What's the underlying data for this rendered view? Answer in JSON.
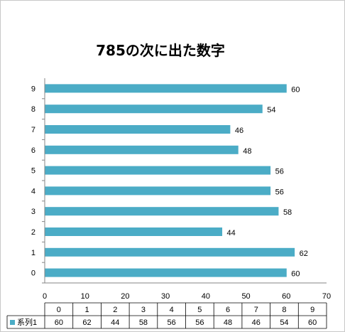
{
  "chart_data": {
    "type": "bar",
    "orientation": "horizontal",
    "title": "785の次に出た数字",
    "categories": [
      "0",
      "1",
      "2",
      "3",
      "4",
      "5",
      "6",
      "7",
      "8",
      "9"
    ],
    "series": [
      {
        "name": "系列1",
        "values": [
          60,
          62,
          44,
          58,
          56,
          56,
          48,
          46,
          54,
          60
        ],
        "color": "#4bacc6"
      }
    ],
    "xlim": [
      0,
      70
    ],
    "xticks": [
      "0",
      "10",
      "20",
      "30",
      "40",
      "50",
      "60",
      "70"
    ],
    "data_labels": true,
    "data_table": true,
    "grid": false,
    "legend": "in-data-table"
  }
}
